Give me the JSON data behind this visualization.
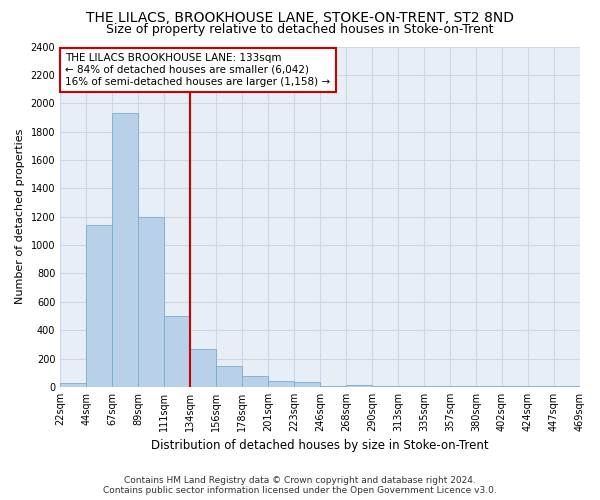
{
  "title": "THE LILACS, BROOKHOUSE LANE, STOKE-ON-TRENT, ST2 8ND",
  "subtitle": "Size of property relative to detached houses in Stoke-on-Trent",
  "xlabel": "Distribution of detached houses by size in Stoke-on-Trent",
  "ylabel": "Number of detached properties",
  "bar_heights": [
    30,
    1140,
    1930,
    1200,
    500,
    265,
    150,
    80,
    45,
    35,
    10,
    15,
    10,
    5,
    5,
    5,
    5,
    5,
    5,
    5
  ],
  "bar_labels": [
    "22sqm",
    "44sqm",
    "67sqm",
    "89sqm",
    "111sqm",
    "134sqm",
    "156sqm",
    "178sqm",
    "201sqm",
    "223sqm",
    "246sqm",
    "268sqm",
    "290sqm",
    "313sqm",
    "335sqm",
    "357sqm",
    "380sqm",
    "402sqm",
    "424sqm",
    "447sqm",
    "469sqm"
  ],
  "bar_color": "#b8d0e8",
  "bar_edge_color": "#7aacd0",
  "grid_color": "#ccd8e8",
  "background_color": "#e8eef6",
  "vline_x": 5,
  "vline_color": "#cc0000",
  "annotation_text": "THE LILACS BROOKHOUSE LANE: 133sqm\n← 84% of detached houses are smaller (6,042)\n16% of semi-detached houses are larger (1,158) →",
  "annotation_box_color": "#ffffff",
  "annotation_edge_color": "#cc0000",
  "ylim": [
    0,
    2400
  ],
  "yticks": [
    0,
    200,
    400,
    600,
    800,
    1000,
    1200,
    1400,
    1600,
    1800,
    2000,
    2200,
    2400
  ],
  "footer_line1": "Contains HM Land Registry data © Crown copyright and database right 2024.",
  "footer_line2": "Contains public sector information licensed under the Open Government Licence v3.0.",
  "title_fontsize": 10,
  "subtitle_fontsize": 9,
  "xlabel_fontsize": 8.5,
  "ylabel_fontsize": 8,
  "tick_fontsize": 7,
  "annotation_fontsize": 7.5,
  "footer_fontsize": 6.5
}
